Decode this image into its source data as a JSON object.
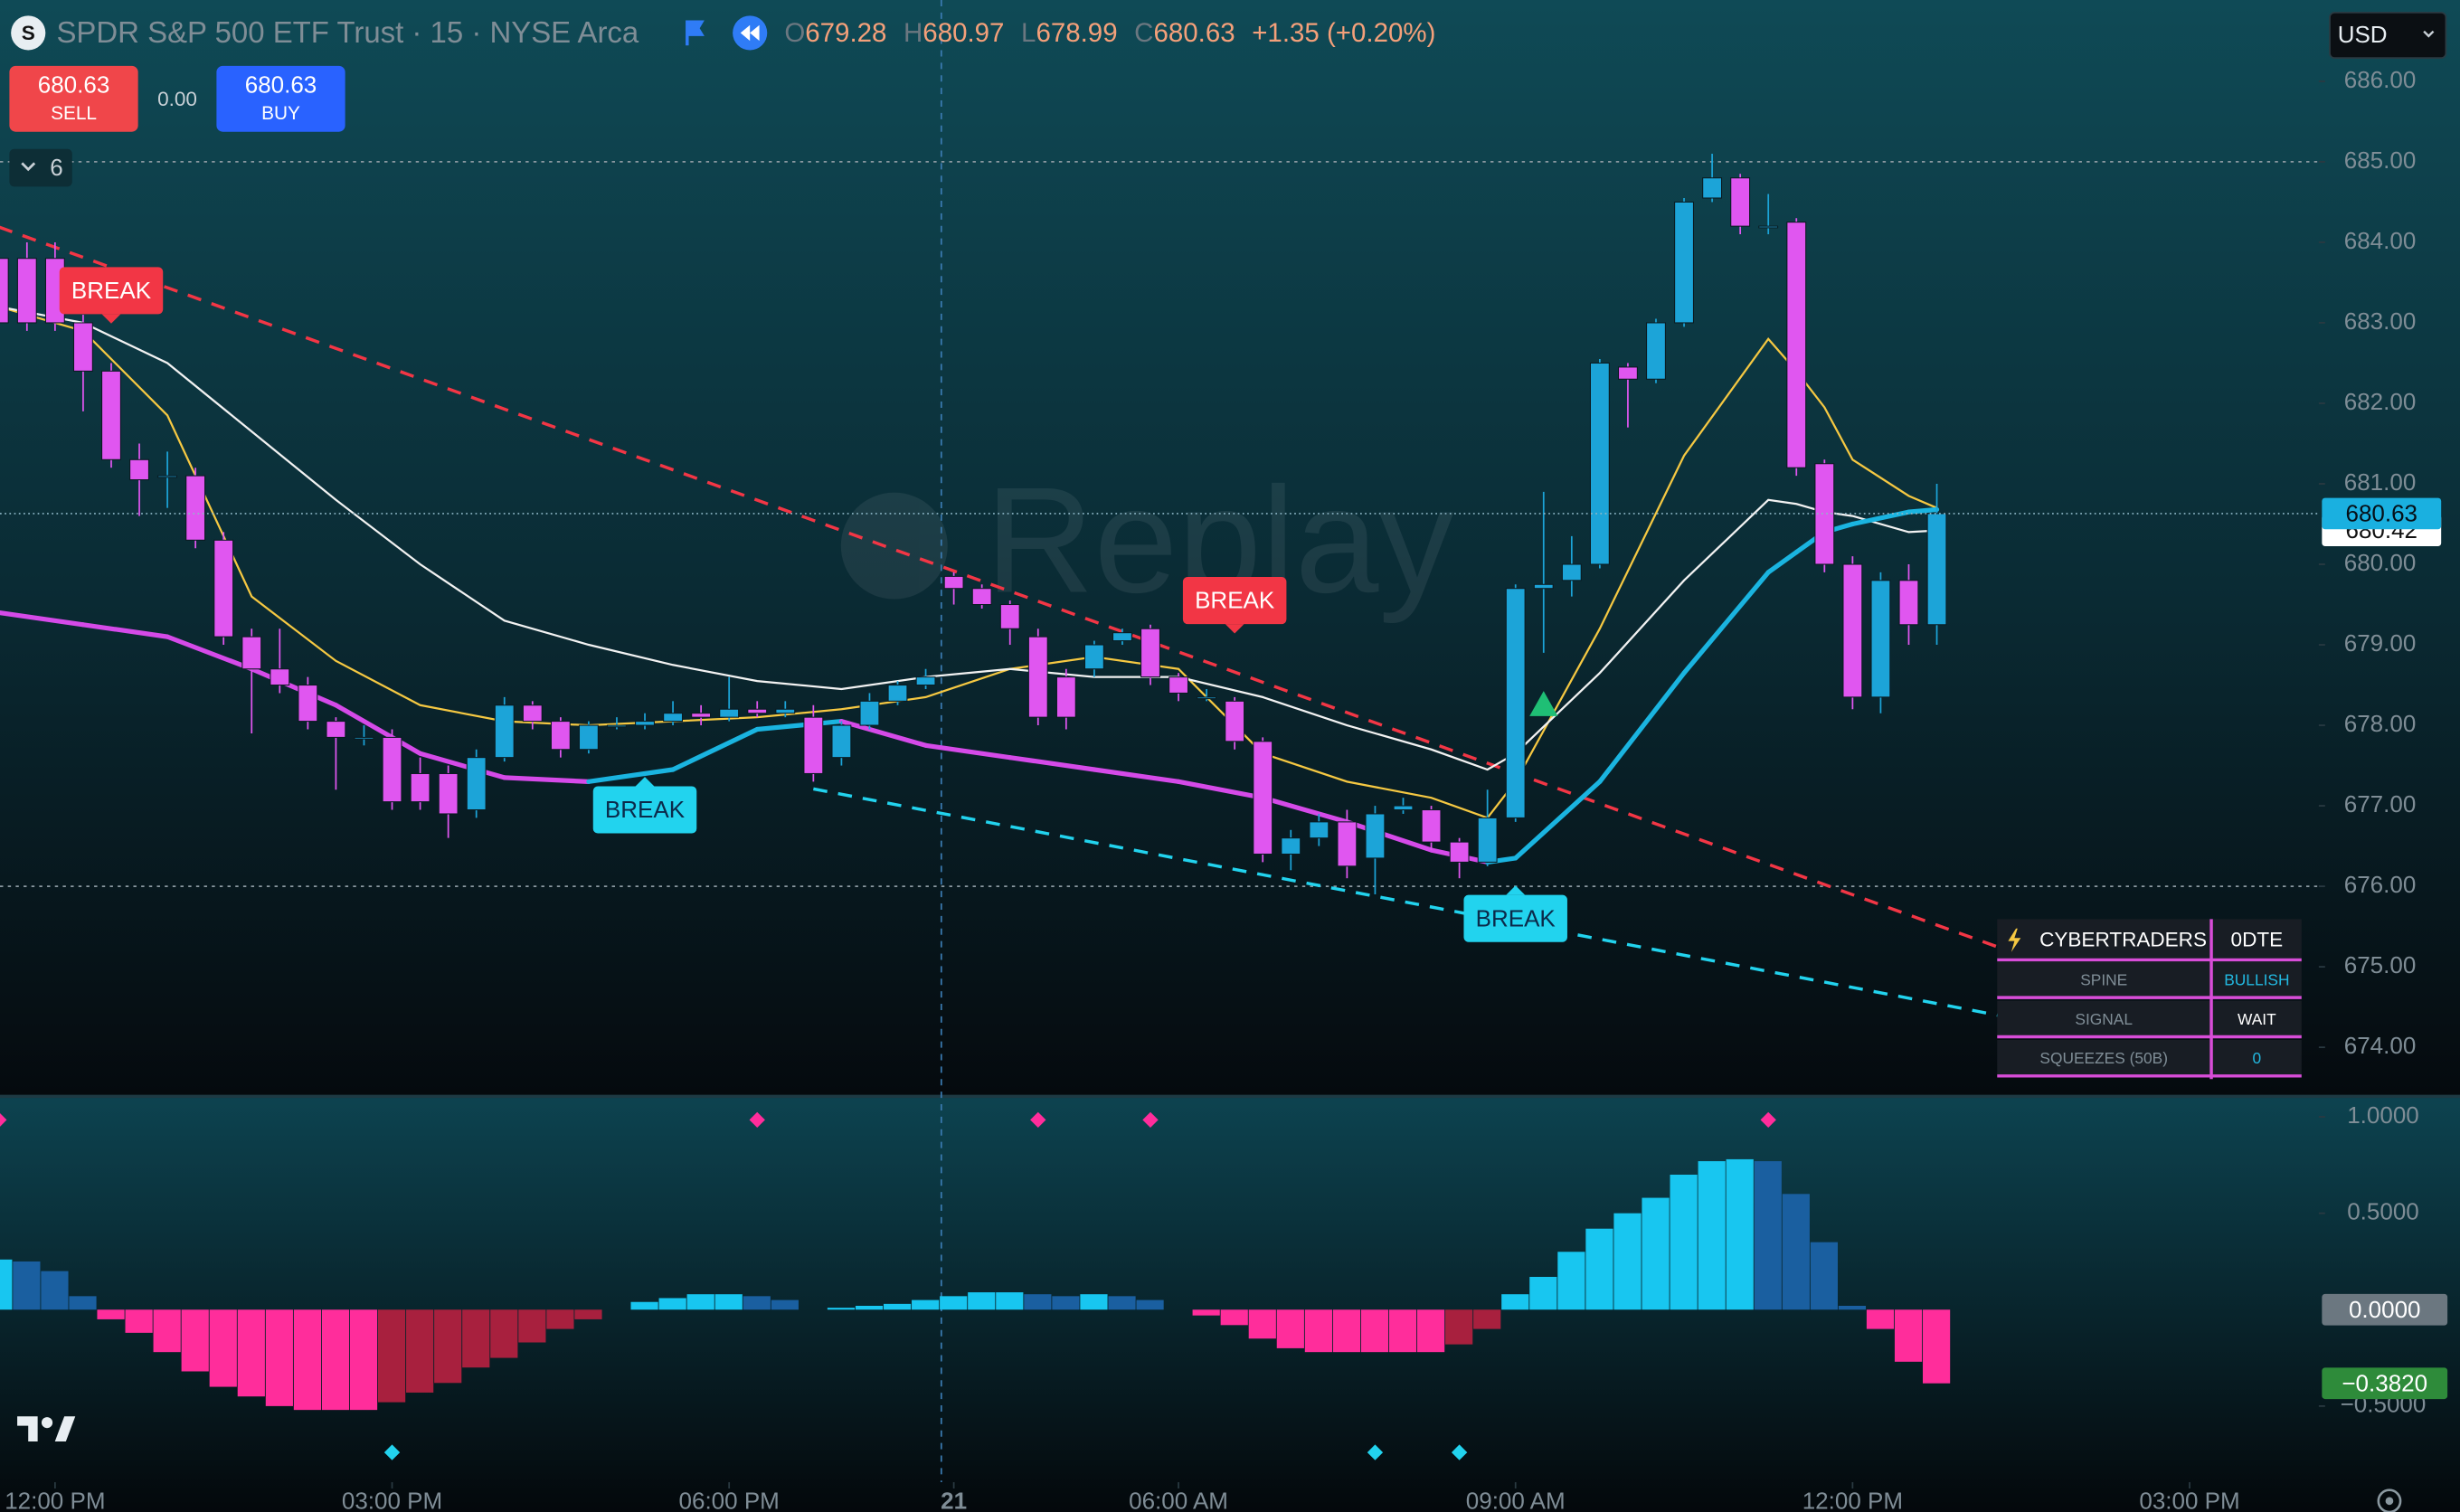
{
  "header": {
    "logo_letter": "S",
    "symbol_title": "SPDR S&P 500 ETF Trust · 15 · NYSE Arca",
    "ohlc_labels": [
      "O",
      "H",
      "L",
      "C"
    ],
    "ohlc_values": [
      "679.28",
      "680.97",
      "678.99",
      "680.63"
    ],
    "change": "+1.35 (+0.20%)"
  },
  "trade_panel": {
    "sell_price": "680.63",
    "sell_label": "SELL",
    "spread": "0.00",
    "buy_price": "680.63",
    "buy_label": "BUY"
  },
  "indicator_count": "6",
  "currency": "USD",
  "watermark": "Replay",
  "info_table": {
    "rows": [
      [
        "CYBERTRADERS",
        "0DTE"
      ],
      [
        "SPINE",
        "BULLISH"
      ],
      [
        "SIGNAL",
        "WAIT"
      ],
      [
        "SQUEEZES (50B)",
        "0"
      ]
    ]
  },
  "chart_data": [
    {
      "type": "candlestick",
      "x": [
        0,
        1,
        2,
        3,
        4,
        5,
        6,
        7,
        8,
        9,
        10,
        11,
        12,
        13,
        14,
        15,
        16,
        17,
        18,
        19,
        20,
        21,
        22,
        23,
        24,
        25,
        26,
        27,
        28,
        29,
        30,
        31,
        32,
        33,
        34,
        35,
        36,
        37,
        38,
        39,
        40,
        41,
        42,
        43,
        44,
        45,
        46,
        47,
        48,
        49,
        50,
        51,
        52,
        53,
        54,
        55,
        56,
        57,
        58,
        59,
        60,
        61,
        62,
        63,
        64,
        65,
        66,
        67,
        68,
        69
      ],
      "open": [
        683.8,
        683.8,
        683.8,
        683.0,
        682.4,
        681.3,
        681.1,
        681.1,
        680.3,
        679.1,
        678.7,
        678.5,
        678.05,
        677.85,
        677.85,
        677.4,
        677.4,
        676.95,
        677.6,
        678.25,
        678.05,
        677.7,
        678.0,
        678.0,
        678.05,
        678.15,
        678.1,
        678.2,
        678.15,
        678.1,
        677.6,
        678.0,
        678.3,
        678.5,
        679.85,
        679.7,
        679.5,
        679.1,
        678.6,
        678.7,
        679.05,
        679.2,
        678.6,
        678.35,
        678.3,
        677.8,
        676.4,
        676.6,
        676.8,
        676.35,
        676.95,
        676.95,
        676.55,
        676.3,
        676.85,
        679.7,
        679.8,
        680.0,
        682.45,
        682.3,
        683.0,
        684.55,
        684.8,
        684.2,
        684.25,
        681.25,
        680.0,
        678.35,
        679.8,
        679.25
      ],
      "high": [
        684.0,
        684.0,
        684.0,
        683.1,
        682.5,
        681.5,
        681.4,
        681.2,
        680.4,
        679.2,
        679.2,
        678.6,
        678.1,
        678.0,
        677.95,
        677.6,
        677.5,
        677.7,
        678.35,
        678.3,
        678.1,
        678.05,
        678.1,
        678.15,
        678.3,
        678.25,
        678.6,
        678.3,
        678.3,
        678.25,
        678.05,
        678.4,
        678.55,
        678.7,
        679.9,
        679.75,
        679.55,
        679.2,
        678.7,
        679.05,
        679.2,
        679.25,
        678.65,
        678.45,
        678.35,
        677.85,
        676.7,
        676.9,
        676.95,
        677.0,
        677.1,
        677.0,
        676.6,
        677.2,
        679.75,
        680.9,
        680.35,
        682.55,
        682.5,
        683.05,
        684.55,
        685.1,
        684.85,
        684.6,
        684.3,
        681.3,
        680.1,
        679.9,
        680.0,
        681.0
      ],
      "low": [
        682.5,
        682.9,
        682.9,
        681.9,
        681.2,
        680.6,
        680.7,
        680.2,
        679.0,
        677.9,
        678.4,
        677.95,
        677.2,
        677.75,
        676.95,
        676.95,
        676.6,
        676.85,
        677.55,
        677.95,
        677.6,
        677.65,
        677.95,
        677.95,
        678.0,
        678.0,
        678.05,
        678.1,
        678.1,
        677.3,
        677.5,
        677.95,
        678.25,
        678.45,
        679.5,
        679.45,
        679.0,
        678.0,
        677.95,
        678.6,
        679.0,
        678.5,
        678.3,
        678.3,
        677.7,
        676.3,
        676.2,
        676.5,
        676.1,
        675.9,
        676.9,
        676.45,
        676.1,
        676.25,
        676.8,
        678.9,
        679.6,
        679.95,
        681.7,
        682.25,
        682.95,
        684.5,
        684.1,
        684.1,
        681.1,
        679.9,
        678.2,
        678.15,
        679.0,
        679.0
      ],
      "close": [
        683.0,
        683.0,
        683.0,
        682.4,
        681.3,
        681.05,
        681.1,
        680.3,
        679.1,
        678.7,
        678.5,
        678.05,
        677.85,
        677.85,
        677.05,
        677.05,
        676.9,
        677.6,
        678.25,
        678.05,
        677.7,
        678.0,
        678.0,
        678.05,
        678.15,
        678.1,
        678.2,
        678.15,
        678.2,
        677.4,
        678.0,
        678.3,
        678.5,
        678.6,
        679.7,
        679.5,
        679.2,
        678.1,
        678.1,
        679.0,
        679.15,
        678.6,
        678.4,
        678.35,
        677.8,
        676.4,
        676.6,
        676.8,
        676.25,
        676.9,
        677.0,
        676.55,
        676.3,
        676.85,
        679.7,
        679.75,
        680.0,
        682.5,
        682.3,
        683.0,
        684.5,
        684.8,
        684.2,
        684.2,
        681.2,
        680.0,
        678.35,
        679.8,
        679.25,
        680.63
      ],
      "up_color": "#1ca4d8",
      "down_color": "#e056f0",
      "xlim": [
        0.04,
        82.6
      ],
      "xticks": [
        {
          "value": 2,
          "label": "12:00 PM"
        },
        {
          "value": 14,
          "label": "03:00 PM"
        },
        {
          "value": 26,
          "label": "06:00 PM"
        },
        {
          "value": 34,
          "label": "21"
        },
        {
          "value": 42,
          "label": "06:00 AM"
        },
        {
          "value": 54,
          "label": "09:00 AM"
        },
        {
          "value": 66,
          "label": "12:00 PM"
        },
        {
          "value": 78,
          "label": "03:00 PM"
        }
      ],
      "ylim": [
        673.41,
        687.01
      ],
      "yticks": [
        {
          "value": 686,
          "label": "686.00"
        },
        {
          "value": 685,
          "label": "685.00"
        },
        {
          "value": 684,
          "label": "684.00"
        },
        {
          "value": 683,
          "label": "683.00"
        },
        {
          "value": 682,
          "label": "682.00"
        },
        {
          "value": 681,
          "label": "681.00"
        },
        {
          "value": 680,
          "label": "680.00"
        },
        {
          "value": 679,
          "label": "679.00"
        },
        {
          "value": 678,
          "label": "678.00"
        },
        {
          "value": 677,
          "label": "677.00"
        },
        {
          "value": 676,
          "label": "676.00"
        },
        {
          "value": 675,
          "label": "675.00"
        },
        {
          "value": 674,
          "label": "674.00"
        }
      ],
      "lines": [
        {
          "color": "#f5c842",
          "width": 1.3,
          "x": [
            0,
            3,
            6,
            9,
            12,
            15,
            18,
            21,
            24,
            27,
            30,
            33,
            36,
            39,
            42,
            45,
            48,
            51,
            53,
            54,
            57,
            60,
            63,
            64,
            65,
            66,
            68,
            69
          ],
          "values": [
            683.2,
            682.9,
            681.85,
            679.6,
            678.8,
            678.25,
            678.05,
            678.0,
            678.05,
            678.1,
            678.2,
            678.35,
            678.7,
            678.85,
            678.7,
            677.65,
            677.3,
            677.1,
            676.85,
            677.3,
            679.2,
            681.35,
            682.8,
            682.4,
            681.95,
            681.3,
            680.85,
            680.7
          ]
        },
        {
          "color": "#f2f2f2",
          "width": 1.3,
          "x": [
            0,
            3,
            6,
            9,
            12,
            15,
            18,
            21,
            24,
            27,
            30,
            33,
            36,
            39,
            42,
            45,
            48,
            51,
            53,
            54,
            57,
            60,
            63,
            64,
            65,
            66,
            68,
            69
          ],
          "values": [
            683.2,
            683.0,
            682.5,
            681.65,
            680.8,
            680.0,
            679.3,
            679.0,
            678.75,
            678.55,
            678.45,
            678.6,
            678.7,
            678.6,
            678.6,
            678.35,
            678.0,
            677.7,
            677.45,
            677.65,
            678.65,
            679.8,
            680.8,
            680.75,
            680.65,
            680.6,
            680.4,
            680.42
          ]
        }
      ],
      "spine": {
        "rising_color": "#1ab4e0",
        "falling_color": "#d54ae8",
        "width": 3,
        "x": [
          0,
          3,
          6,
          9,
          12,
          15,
          18,
          21,
          24,
          27,
          30,
          33,
          36,
          39,
          42,
          45,
          48,
          51,
          53,
          54,
          57,
          60,
          63,
          64,
          65,
          66,
          68,
          69
        ],
        "values": [
          679.4,
          679.25,
          679.1,
          678.7,
          678.25,
          677.65,
          677.35,
          677.3,
          677.45,
          677.95,
          678.05,
          677.75,
          677.6,
          677.45,
          677.3,
          677.1,
          676.8,
          676.45,
          676.3,
          676.35,
          677.3,
          678.65,
          679.9,
          680.15,
          680.4,
          680.5,
          680.65,
          680.68
        ]
      },
      "trendlines": [
        {
          "color": "#f23645",
          "x": [
            0,
            71.3
          ],
          "values": [
            684.19,
            675.23
          ]
        },
        {
          "color": "#22d3ee",
          "x": [
            29,
            71.3
          ],
          "values": [
            677.21,
            674.39
          ]
        }
      ],
      "annotations": [
        {
          "text": "BREAK",
          "x": 4,
          "value": 683.4,
          "color": "#f23645",
          "pointer": "down"
        },
        {
          "text": "BREAK",
          "x": 23,
          "value": 676.95,
          "color": "#22d3ee",
          "pointer": "up"
        },
        {
          "text": "BREAK",
          "x": 44,
          "value": 679.55,
          "color": "#f23645",
          "pointer": "down"
        },
        {
          "text": "BREAK",
          "x": 54,
          "value": 675.6,
          "color": "#22d3ee",
          "pointer": "up"
        }
      ],
      "signal_markers": {
        "x": [
          55
        ],
        "values": [
          678.25
        ],
        "color": "#1fbf75"
      },
      "levels": [
        685,
        676
      ],
      "price_badges": [
        {
          "value": 680.42,
          "label": "680.42",
          "color": "#ffffff"
        },
        {
          "value": 680.63,
          "label": "680.63",
          "color": "#1ab0e0"
        }
      ]
    },
    {
      "type": "bar",
      "x": [
        0,
        1,
        2,
        3,
        4,
        5,
        6,
        7,
        8,
        9,
        10,
        11,
        12,
        13,
        14,
        15,
        16,
        17,
        18,
        19,
        20,
        21,
        22,
        23,
        24,
        25,
        26,
        27,
        28,
        29,
        30,
        31,
        32,
        33,
        34,
        35,
        36,
        37,
        38,
        39,
        40,
        41,
        42,
        43,
        44,
        45,
        46,
        47,
        48,
        49,
        50,
        51,
        52,
        53,
        54,
        55,
        56,
        57,
        58,
        59,
        60,
        61,
        62,
        63,
        64,
        65,
        66,
        67,
        68,
        69
      ],
      "values": [
        0.26,
        0.25,
        0.2,
        0.07,
        -0.05,
        -0.12,
        -0.22,
        -0.32,
        -0.4,
        -0.45,
        -0.5,
        -0.52,
        -0.52,
        -0.52,
        -0.48,
        -0.43,
        -0.38,
        -0.3,
        -0.25,
        -0.17,
        -0.1,
        -0.05,
        0.0,
        0.04,
        0.06,
        0.08,
        0.08,
        0.07,
        0.05,
        0.0,
        0.01,
        0.02,
        0.03,
        0.05,
        0.07,
        0.09,
        0.09,
        0.08,
        0.07,
        0.08,
        0.07,
        0.05,
        0.0,
        -0.03,
        -0.08,
        -0.15,
        -0.2,
        -0.22,
        -0.22,
        -0.22,
        -0.22,
        -0.22,
        -0.18,
        -0.1,
        0.08,
        0.17,
        0.3,
        0.42,
        0.5,
        0.58,
        0.7,
        0.77,
        0.78,
        0.77,
        0.6,
        0.35,
        0.02,
        -0.1,
        -0.27,
        -0.382
      ],
      "colors": {
        "pos_up": "#18c6f0",
        "pos_down": "#1a5fa0",
        "neg_down": "#ff2d9b",
        "neg_up": "#a8203e"
      },
      "xlim": [
        0.04,
        82.6
      ],
      "ylim": [
        -0.854,
        1.098
      ],
      "yticks": [
        {
          "value": 1,
          "label": "1.0000"
        },
        {
          "value": 0.5,
          "label": "0.5000"
        },
        {
          "value": -0.5,
          "label": "−0.5000"
        }
      ],
      "value_badges": [
        {
          "value": 0,
          "label": "0.0000",
          "color": "#6b7780"
        },
        {
          "value": -0.382,
          "label": "−0.3820",
          "color": "#2e8b3a"
        }
      ],
      "top_markers": {
        "x": [
          0,
          27,
          37,
          41,
          63
        ],
        "color": "#ff2d9b"
      },
      "bottom_markers": {
        "x": [
          14,
          49,
          52
        ],
        "color": "#22d3ee"
      }
    }
  ]
}
